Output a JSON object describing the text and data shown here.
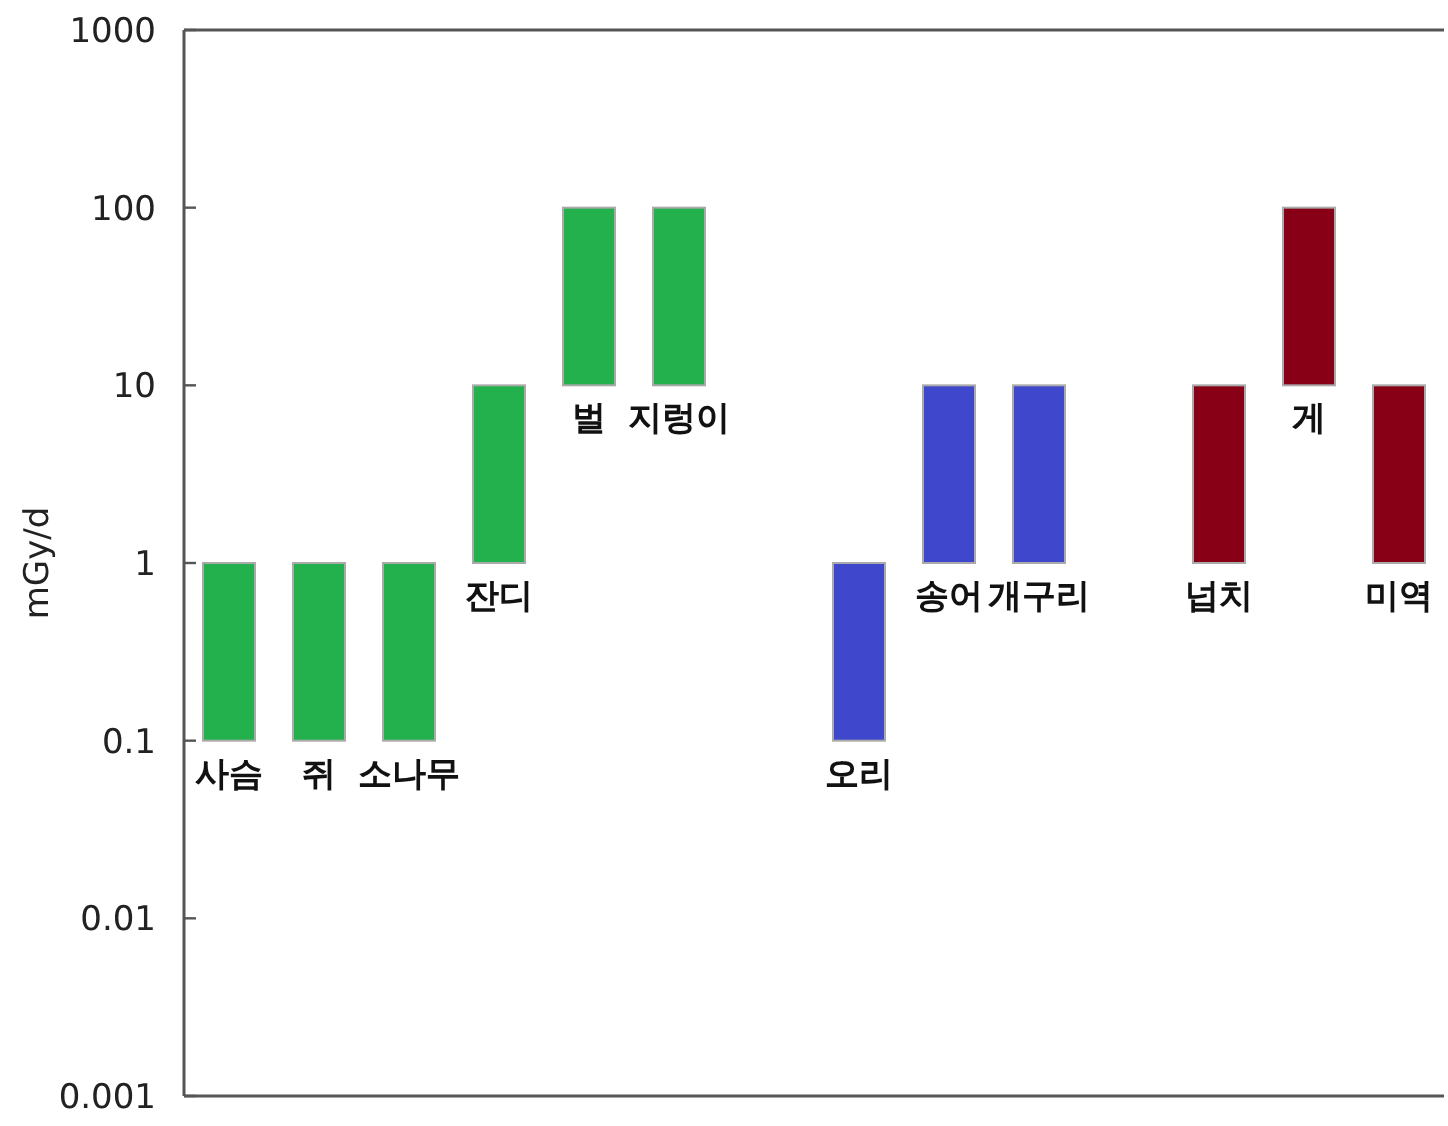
{
  "chart_data": {
    "type": "bar",
    "ylabel": "mGy/d",
    "log": true,
    "ylim": [
      0.001,
      1000
    ],
    "yticks": [
      0.001,
      0.01,
      0.1,
      1,
      10,
      100,
      1000
    ],
    "categories": [
      "사슴",
      "쥐",
      "소나무",
      "잔디",
      "벌",
      "지렁이",
      null,
      "오리",
      "송어",
      "개구리",
      null,
      "넙치",
      "게",
      "미역"
    ],
    "base": [
      0.1,
      0.1,
      0.1,
      1,
      10,
      10,
      null,
      0.1,
      1,
      1,
      null,
      1,
      10,
      1
    ],
    "values": [
      0.9,
      0.9,
      0.9,
      9,
      90,
      90,
      null,
      0.9,
      9,
      9,
      null,
      9,
      90,
      9
    ],
    "colors": [
      "#22b14c",
      "#22b14c",
      "#22b14c",
      "#22b14c",
      "#22b14c",
      "#22b14c",
      null,
      "#3f48cc",
      "#3f48cc",
      "#3f48cc",
      null,
      "#880015",
      "#880015",
      "#880015"
    ]
  }
}
